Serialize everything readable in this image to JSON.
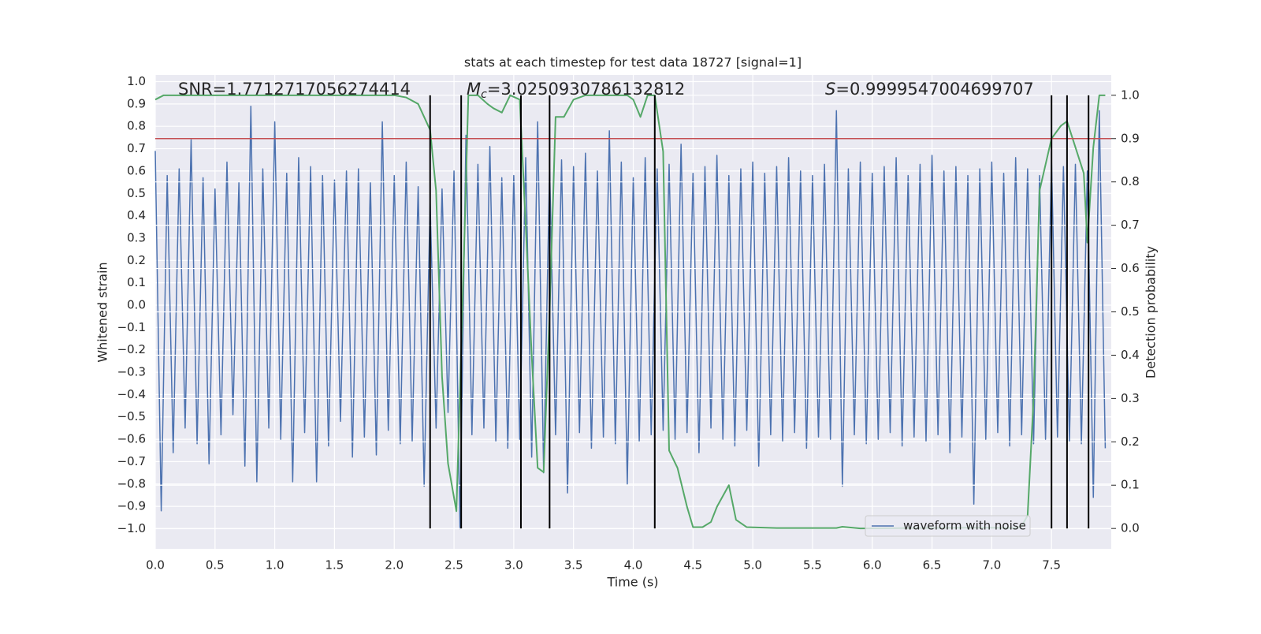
{
  "chart_data": {
    "type": "line",
    "title": "stats at each timestep for test data 18727 [signal=1]",
    "xlabel": "Time (s)",
    "ylabel": "Whitened strain",
    "y2label": "Detection probability",
    "annotations": [
      {
        "text": "SNR=1.7712717056274414"
      },
      {
        "symbol": "M",
        "subscript": "c",
        "text": "=3.0250930786132812"
      },
      {
        "symbol": "S",
        "text": "=0.9999547004699707"
      }
    ],
    "xlim": [
      0,
      8
    ],
    "ylim": [
      -1.09,
      1.03
    ],
    "y2lim": [
      -0.047,
      1.047
    ],
    "grid": true,
    "legend": "lower right",
    "xticks": [
      {
        "value": 0,
        "label": "0.0"
      },
      {
        "value": 0.5,
        "label": "0.5"
      },
      {
        "value": 1,
        "label": "1.0"
      },
      {
        "value": 1.5,
        "label": "1.5"
      },
      {
        "value": 2,
        "label": "2.0"
      },
      {
        "value": 2.5,
        "label": "2.5"
      },
      {
        "value": 3,
        "label": "3.0"
      },
      {
        "value": 3.5,
        "label": "3.5"
      },
      {
        "value": 4,
        "label": "4.0"
      },
      {
        "value": 4.5,
        "label": "4.5"
      },
      {
        "value": 5,
        "label": "5.0"
      },
      {
        "value": 5.5,
        "label": "5.5"
      },
      {
        "value": 6,
        "label": "6.0"
      },
      {
        "value": 6.5,
        "label": "6.5"
      },
      {
        "value": 7,
        "label": "7.0"
      },
      {
        "value": 7.5,
        "label": "7.5"
      }
    ],
    "yticks": [
      {
        "value": 1,
        "label": "1.0"
      },
      {
        "value": 0.9,
        "label": "0.9"
      },
      {
        "value": 0.8,
        "label": "0.8"
      },
      {
        "value": 0.7,
        "label": "0.7"
      },
      {
        "value": 0.6,
        "label": "0.6"
      },
      {
        "value": 0.5,
        "label": "0.5"
      },
      {
        "value": 0.4,
        "label": "0.4"
      },
      {
        "value": 0.3,
        "label": "0.3"
      },
      {
        "value": 0.2,
        "label": "0.2"
      },
      {
        "value": 0.1,
        "label": "0.1"
      },
      {
        "value": 0,
        "label": "0.0"
      },
      {
        "value": -0.1,
        "label": "−0.1"
      },
      {
        "value": -0.2,
        "label": "−0.2"
      },
      {
        "value": -0.3,
        "label": "−0.3"
      },
      {
        "value": -0.4,
        "label": "−0.4"
      },
      {
        "value": -0.5,
        "label": "−0.5"
      },
      {
        "value": -0.6,
        "label": "−0.6"
      },
      {
        "value": -0.7,
        "label": "−0.7"
      },
      {
        "value": -0.8,
        "label": "−0.8"
      },
      {
        "value": -0.9,
        "label": "−0.9"
      },
      {
        "value": -1,
        "label": "−1.0"
      }
    ],
    "y2ticks": [
      {
        "value": 0,
        "label": "0.0"
      },
      {
        "value": 0.1,
        "label": "0.1"
      },
      {
        "value": 0.2,
        "label": "0.2"
      },
      {
        "value": 0.3,
        "label": "0.3"
      },
      {
        "value": 0.4,
        "label": "0.4"
      },
      {
        "value": 0.5,
        "label": "0.5"
      },
      {
        "value": 0.6,
        "label": "0.6"
      },
      {
        "value": 0.7,
        "label": "0.7"
      },
      {
        "value": 0.8,
        "label": "0.8"
      },
      {
        "value": 0.9,
        "label": "0.9"
      },
      {
        "value": 1,
        "label": "1.0"
      }
    ],
    "series": [
      {
        "name": "waveform with noise",
        "color": "#4c72b0",
        "x": [
          0,
          0.05,
          0.1,
          0.15,
          0.2,
          0.25,
          0.3,
          0.35,
          0.4,
          0.45,
          0.5,
          0.55,
          0.6,
          0.65,
          0.7,
          0.75,
          0.8,
          0.85,
          0.9,
          0.95,
          1,
          1.05,
          1.1,
          1.15,
          1.2,
          1.25,
          1.3,
          1.35,
          1.4,
          1.45,
          1.5,
          1.55,
          1.6,
          1.65,
          1.7,
          1.75,
          1.8,
          1.85,
          1.9,
          1.95,
          2,
          2.05,
          2.1,
          2.15,
          2.2,
          2.25,
          2.3,
          2.35,
          2.4,
          2.45,
          2.5,
          2.55,
          2.6,
          2.65,
          2.7,
          2.75,
          2.8,
          2.85,
          2.9,
          2.95,
          3,
          3.05,
          3.1,
          3.15,
          3.2,
          3.25,
          3.3,
          3.35,
          3.4,
          3.45,
          3.5,
          3.55,
          3.6,
          3.65,
          3.7,
          3.75,
          3.8,
          3.85,
          3.9,
          3.95,
          4,
          4.05,
          4.1,
          4.15,
          4.2,
          4.25,
          4.3,
          4.35,
          4.4,
          4.45,
          4.5,
          4.55,
          4.6,
          4.65,
          4.7,
          4.75,
          4.8,
          4.85,
          4.9,
          4.95,
          5,
          5.05,
          5.1,
          5.15,
          5.2,
          5.25,
          5.3,
          5.35,
          5.4,
          5.45,
          5.5,
          5.55,
          5.6,
          5.65,
          5.7,
          5.75,
          5.8,
          5.85,
          5.9,
          5.95,
          6,
          6.05,
          6.1,
          6.15,
          6.2,
          6.25,
          6.3,
          6.35,
          6.4,
          6.45,
          6.5,
          6.55,
          6.6,
          6.65,
          6.7,
          6.75,
          6.8,
          6.85,
          6.9,
          6.95,
          7,
          7.05,
          7.1,
          7.15,
          7.2,
          7.25,
          7.3,
          7.35,
          7.4,
          7.45,
          7.5,
          7.55,
          7.6,
          7.65,
          7.7,
          7.75,
          7.8,
          7.85,
          7.9,
          7.95
        ],
        "values": [
          0.69,
          -0.92,
          0.58,
          -0.66,
          0.61,
          -0.55,
          0.74,
          -0.62,
          0.57,
          -0.71,
          0.52,
          -0.58,
          0.64,
          -0.49,
          0.55,
          -0.72,
          0.89,
          -0.79,
          0.61,
          -0.55,
          0.82,
          -0.6,
          0.59,
          -0.79,
          0.66,
          -0.57,
          0.62,
          -0.79,
          0.58,
          -0.63,
          0.56,
          -0.52,
          0.6,
          -0.68,
          0.61,
          -0.59,
          0.55,
          -0.67,
          0.82,
          -0.56,
          0.58,
          -0.62,
          0.64,
          -0.61,
          0.53,
          -0.81,
          0.46,
          -0.55,
          0.52,
          -0.48,
          0.6,
          -1.0,
          0.76,
          -0.58,
          0.63,
          -0.55,
          0.71,
          -0.61,
          0.57,
          -0.64,
          0.58,
          -0.6,
          0.66,
          -0.68,
          0.82,
          -0.75,
          0.61,
          -0.58,
          0.65,
          -0.84,
          0.62,
          -0.57,
          0.68,
          -0.64,
          0.6,
          -0.59,
          0.78,
          -0.62,
          0.64,
          -0.8,
          0.57,
          -0.61,
          0.66,
          -0.58,
          0.61,
          -0.56,
          0.63,
          -0.6,
          0.72,
          -0.57,
          0.59,
          -0.66,
          0.62,
          -0.55,
          0.67,
          -0.6,
          0.58,
          -0.63,
          0.61,
          -0.56,
          0.64,
          -0.72,
          0.59,
          -0.58,
          0.62,
          -0.61,
          0.66,
          -0.57,
          0.6,
          -0.64,
          0.58,
          -0.59,
          0.63,
          -0.6,
          0.87,
          -0.81,
          0.61,
          -0.58,
          0.64,
          -0.62,
          0.59,
          -0.6,
          0.62,
          -0.57,
          0.66,
          -0.63,
          0.58,
          -0.59,
          0.63,
          -0.61,
          0.67,
          -0.58,
          0.6,
          -0.66,
          0.62,
          -0.59,
          0.58,
          -0.89,
          0.61,
          -0.6,
          0.64,
          -0.57,
          0.59,
          -0.63,
          0.66,
          -0.58,
          0.61,
          -0.62,
          0.58,
          -0.6,
          0.65,
          -0.59,
          0.62,
          -0.61,
          0.63,
          -0.62,
          0.6,
          -0.86,
          0.87,
          -0.64
        ]
      },
      {
        "color": "#55a868",
        "axis": "y2",
        "x": [
          0,
          0.07,
          2.0,
          2.1,
          2.2,
          2.3,
          2.35,
          2.4,
          2.45,
          2.52,
          2.58,
          2.62,
          2.7,
          2.78,
          2.83,
          2.9,
          2.97,
          3.05,
          3.1,
          3.15,
          3.2,
          3.25,
          3.3,
          3.35,
          3.42,
          3.5,
          3.6,
          3.95,
          4.0,
          4.06,
          4.12,
          4.18,
          4.25,
          4.3,
          4.37,
          4.45,
          4.5,
          4.58,
          4.65,
          4.7,
          4.8,
          4.86,
          4.95,
          5.2,
          5.7,
          5.75,
          5.9,
          6.9,
          7.2,
          7.25,
          7.3,
          7.35,
          7.4,
          7.5,
          7.58,
          7.63,
          7.7,
          7.77,
          7.8,
          7.85,
          7.9,
          7.95
        ],
        "values": [
          0.99,
          1.0,
          1.0,
          0.995,
          0.98,
          0.92,
          0.78,
          0.35,
          0.15,
          0.04,
          0.6,
          1.0,
          1.0,
          0.98,
          0.97,
          0.96,
          1.0,
          0.99,
          0.7,
          0.4,
          0.14,
          0.13,
          0.5,
          0.95,
          0.95,
          0.99,
          1.0,
          1.0,
          0.99,
          0.95,
          1.0,
          1.0,
          0.87,
          0.18,
          0.14,
          0.05,
          0.003,
          0.003,
          0.015,
          0.05,
          0.1,
          0.02,
          0.003,
          0.001,
          0.001,
          0.004,
          0.0,
          0.002,
          0.001,
          0.005,
          0.03,
          0.3,
          0.78,
          0.9,
          0.93,
          0.94,
          0.88,
          0.82,
          0.66,
          0.88,
          1.0,
          1.0
        ]
      }
    ],
    "hlines": [
      {
        "value": 0.9,
        "axis": "y2",
        "color": "#c44e52"
      }
    ],
    "vlines": {
      "x": [
        2.3,
        2.56,
        3.06,
        3.3,
        4.18,
        7.5,
        7.63,
        7.81
      ],
      "ymin": 0,
      "ymax": 1,
      "axis": "y2",
      "color": "#000000"
    }
  }
}
